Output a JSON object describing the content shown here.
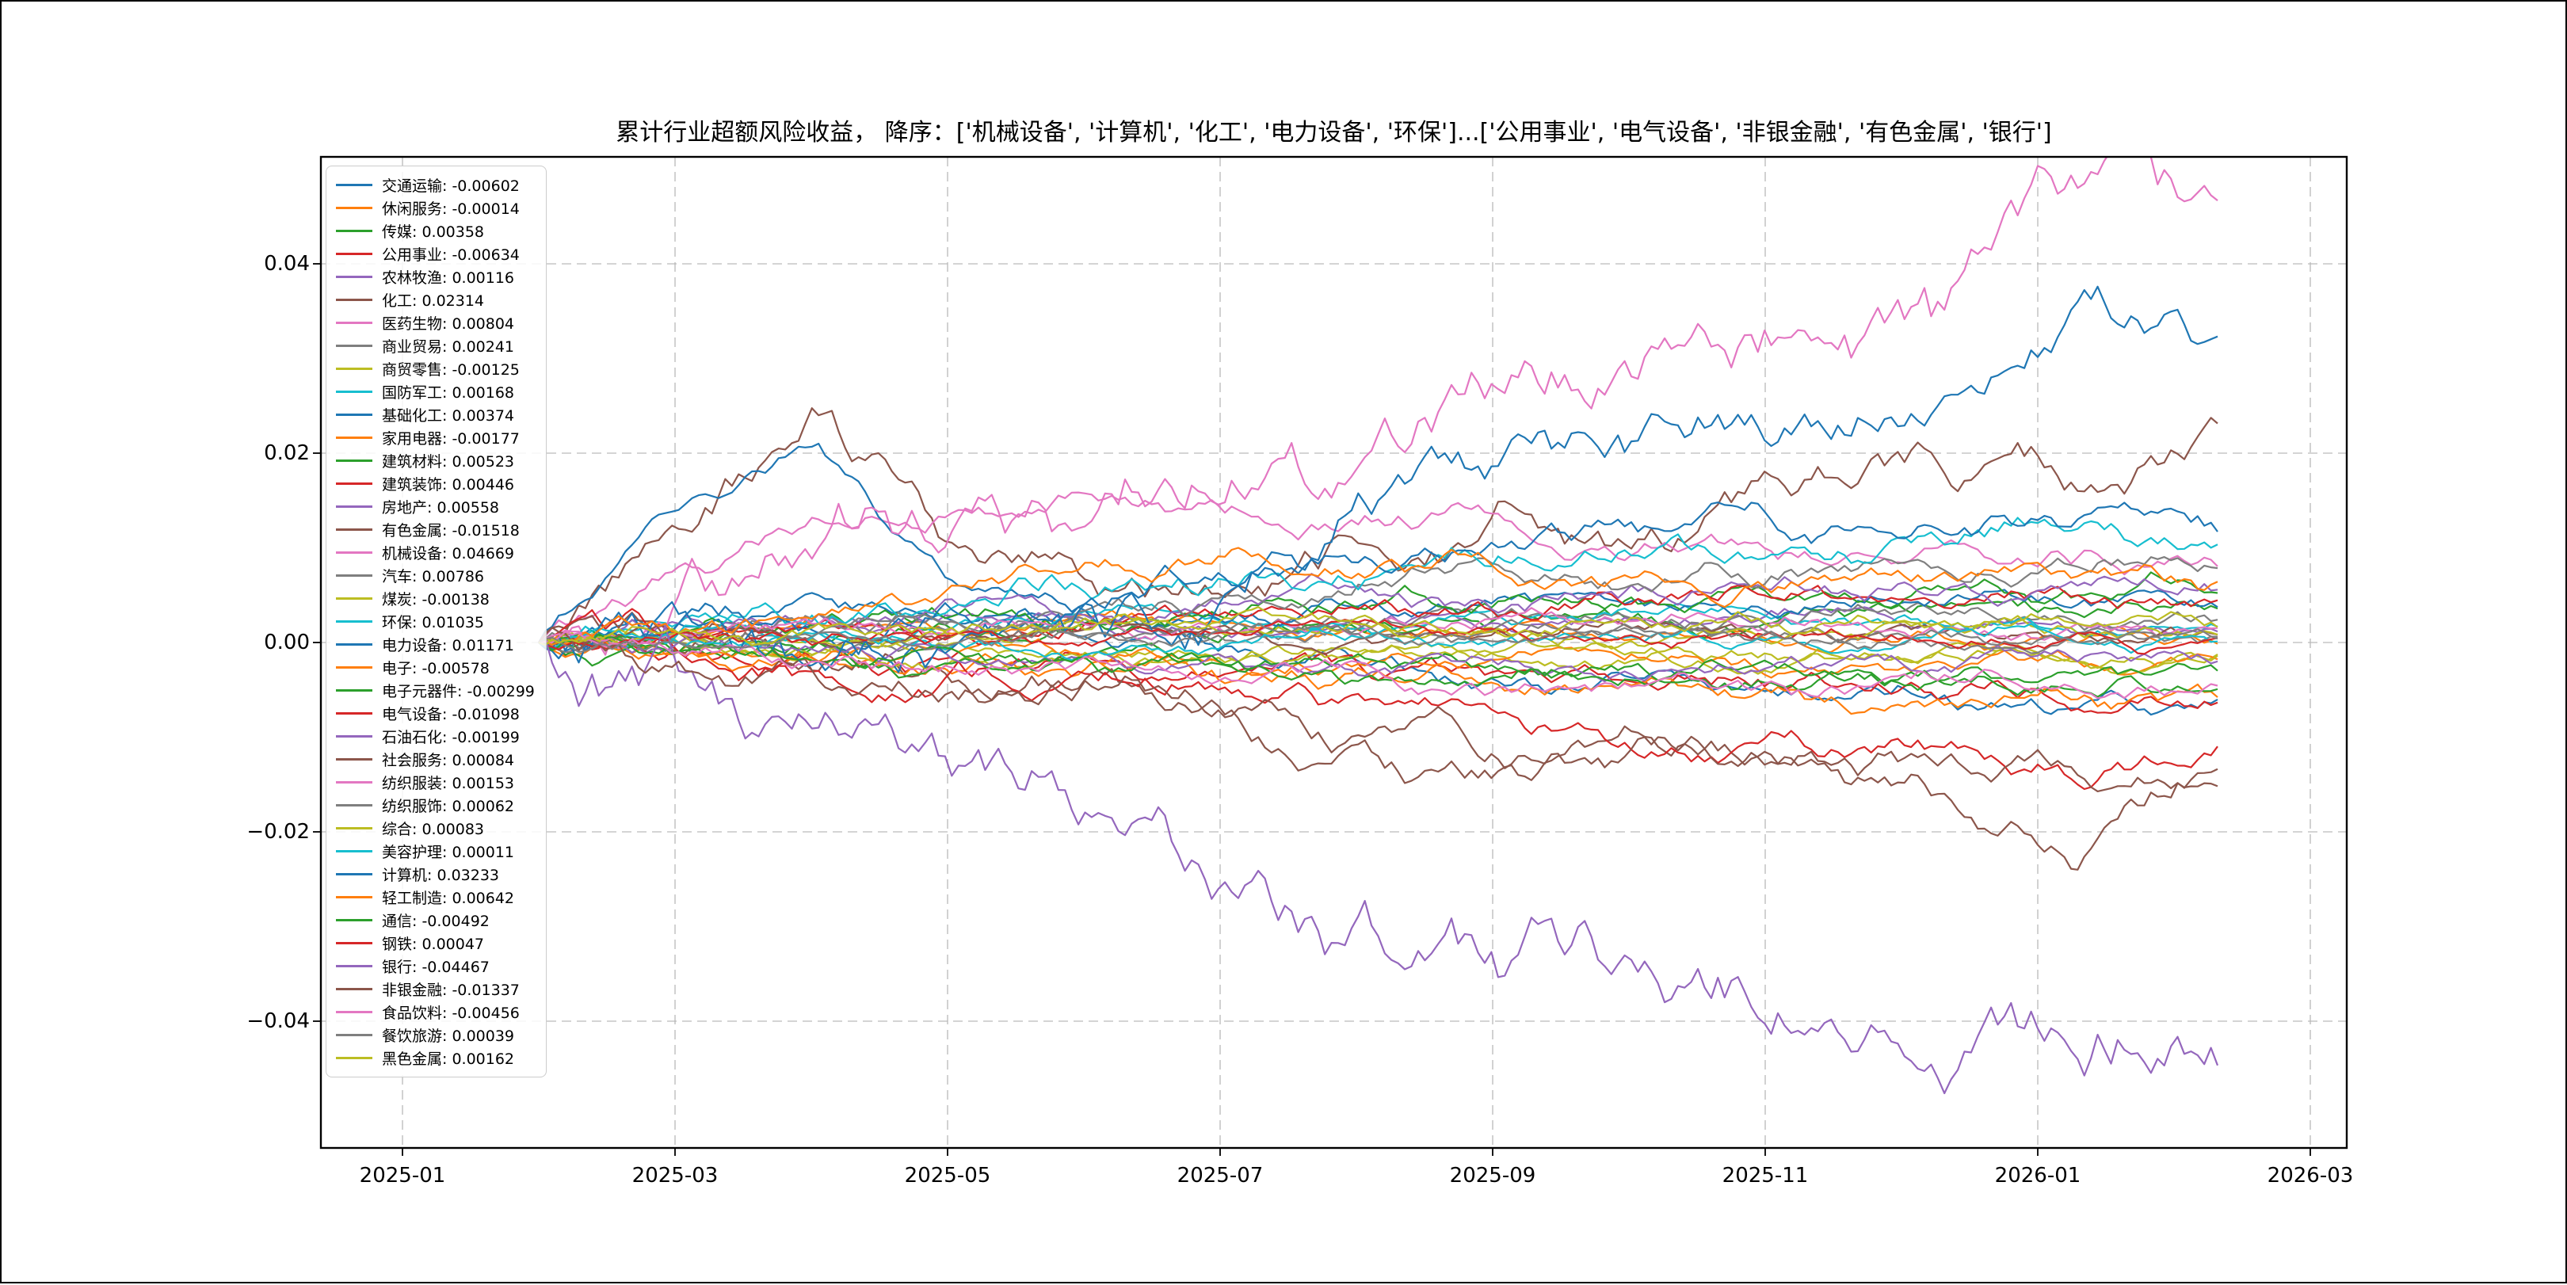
{
  "figure": {
    "background": "#ffffff",
    "border_color": "#000000"
  },
  "chart_data": {
    "type": "line",
    "title": "累计行业超额风险收益， 降序：['机械设备', '计算机', '化工', '电力设备', '环保']...['公用事业', '电气设备', '非银金融', '有色金属', '银行']",
    "xlabel": "",
    "ylabel": "",
    "grid": "dashed",
    "legend_position": "upper left",
    "x_ticks": [
      "2025-01",
      "2025-03",
      "2025-05",
      "2025-07",
      "2025-09",
      "2025-11",
      "2026-01",
      "2026-03"
    ],
    "y_ticks": [
      0.04,
      0.02,
      0.0,
      -0.02,
      -0.04
    ],
    "y_tick_labels": [
      "0.04",
      "0.02",
      "0.00",
      "−0.02",
      "−0.04"
    ],
    "ylim": [
      -0.053,
      0.051
    ],
    "data_start": "2025-02",
    "data_end": "2026-02",
    "series": [
      {
        "name": "交通运输",
        "value_label": "-0.00602",
        "value": -0.00602,
        "color": "#1f77b4",
        "waypoints": [
          0,
          0.002,
          0.005,
          0.002,
          0.0,
          -0.001,
          -0.002,
          -0.004,
          -0.003,
          -0.005,
          -0.006,
          -0.007,
          -0.00602
        ]
      },
      {
        "name": "休闲服务",
        "value_label": "-0.00014",
        "value": -0.00014,
        "color": "#ff7f0e",
        "waypoints": [
          0,
          0.001,
          0.002,
          0.001,
          0.003,
          0.002,
          0.001,
          0.002,
          0.001,
          0.0,
          0.001,
          0.0,
          -0.00014
        ]
      },
      {
        "name": "传媒",
        "value_label": "0.00358",
        "value": 0.00358,
        "color": "#2ca02c",
        "waypoints": [
          0,
          -0.001,
          0.0,
          0.001,
          0.002,
          0.001,
          0.002,
          0.003,
          0.002,
          0.003,
          0.004,
          0.003,
          0.00358
        ]
      },
      {
        "name": "公用事业",
        "value_label": "-0.00634",
        "value": -0.00634,
        "color": "#d62728",
        "waypoints": [
          0,
          -0.001,
          -0.002,
          -0.001,
          -0.002,
          -0.003,
          -0.004,
          -0.003,
          -0.005,
          -0.004,
          -0.006,
          -0.007,
          -0.00634
        ]
      },
      {
        "name": "农林牧渔",
        "value_label": "0.00116",
        "value": 0.00116,
        "color": "#9467bd",
        "waypoints": [
          0,
          0.001,
          0.002,
          0.003,
          0.002,
          0.001,
          0.002,
          0.001,
          0.002,
          0.003,
          0.002,
          0.001,
          0.00116
        ]
      },
      {
        "name": "化工",
        "value_label": "0.02314",
        "value": 0.02314,
        "color": "#8c564b",
        "waypoints": [
          0,
          0.012,
          0.024,
          0.01,
          0.005,
          0.006,
          0.01,
          0.014,
          0.011,
          0.016,
          0.019,
          0.016,
          0.02314
        ]
      },
      {
        "name": "医药生物",
        "value_label": "0.00804",
        "value": 0.00804,
        "color": "#e377c2",
        "waypoints": [
          0,
          0.008,
          0.013,
          0.014,
          0.015,
          0.014,
          0.013,
          0.012,
          0.01,
          0.009,
          0.01,
          0.009,
          0.00804
        ]
      },
      {
        "name": "商业贸易",
        "value_label": "0.00241",
        "value": 0.00241,
        "color": "#7f7f7f",
        "waypoints": [
          0,
          0.001,
          0.0,
          0.001,
          0.002,
          0.001,
          0.002,
          0.003,
          0.002,
          0.002,
          0.003,
          0.002,
          0.00241
        ]
      },
      {
        "name": "商贸零售",
        "value_label": "-0.00125",
        "value": -0.00125,
        "color": "#bcbd22",
        "waypoints": [
          0,
          0.0,
          -0.001,
          0.0,
          -0.001,
          -0.002,
          -0.001,
          -0.002,
          -0.001,
          -0.002,
          -0.001,
          -0.002,
          -0.00125
        ]
      },
      {
        "name": "国防军工",
        "value_label": "0.00168",
        "value": 0.00168,
        "color": "#17becf",
        "waypoints": [
          0,
          0.002,
          0.001,
          0.002,
          0.003,
          0.002,
          0.001,
          0.002,
          0.003,
          0.002,
          0.002,
          0.001,
          0.00168
        ]
      },
      {
        "name": "基础化工",
        "value_label": "0.00374",
        "value": 0.00374,
        "color": "#1f77b4",
        "waypoints": [
          0,
          0.014,
          0.021,
          0.006,
          0.002,
          0.003,
          0.004,
          0.005,
          0.004,
          0.003,
          0.004,
          0.004,
          0.00374
        ]
      },
      {
        "name": "家用电器",
        "value_label": "-0.00177",
        "value": -0.00177,
        "color": "#ff7f0e",
        "waypoints": [
          0,
          -0.001,
          -0.002,
          -0.001,
          -0.002,
          -0.003,
          -0.002,
          -0.001,
          -0.002,
          -0.003,
          -0.002,
          -0.002,
          -0.00177
        ]
      },
      {
        "name": "建筑材料",
        "value_label": "0.00523",
        "value": 0.00523,
        "color": "#2ca02c",
        "waypoints": [
          0,
          0.001,
          0.002,
          0.003,
          0.002,
          0.003,
          0.004,
          0.005,
          0.004,
          0.005,
          0.006,
          0.005,
          0.00523
        ]
      },
      {
        "name": "建筑装饰",
        "value_label": "0.00446",
        "value": 0.00446,
        "color": "#d62728",
        "waypoints": [
          0,
          0.001,
          0.002,
          0.001,
          0.002,
          0.003,
          0.004,
          0.003,
          0.004,
          0.005,
          0.004,
          0.005,
          0.00446
        ]
      },
      {
        "name": "房地产",
        "value_label": "0.00558",
        "value": 0.00558,
        "color": "#9467bd",
        "waypoints": [
          0,
          0.002,
          0.003,
          0.004,
          0.003,
          0.004,
          0.005,
          0.004,
          0.005,
          0.006,
          0.005,
          0.006,
          0.00558
        ]
      },
      {
        "name": "有色金属",
        "value_label": "-0.01518",
        "value": -0.01518,
        "color": "#8c564b",
        "waypoints": [
          0,
          -0.001,
          -0.003,
          -0.004,
          -0.003,
          -0.008,
          -0.012,
          -0.014,
          -0.011,
          -0.013,
          -0.016,
          -0.024,
          -0.01518
        ]
      },
      {
        "name": "机械设备",
        "value_label": "0.04669",
        "value": 0.04669,
        "color": "#e377c2",
        "waypoints": [
          0,
          0.005,
          0.01,
          0.013,
          0.014,
          0.016,
          0.022,
          0.028,
          0.031,
          0.033,
          0.036,
          0.048,
          0.04669
        ]
      },
      {
        "name": "汽车",
        "value_label": "0.00786",
        "value": 0.00786,
        "color": "#7f7f7f",
        "waypoints": [
          0,
          0.001,
          0.003,
          0.002,
          0.004,
          0.005,
          0.006,
          0.007,
          0.006,
          0.007,
          0.008,
          0.008,
          0.00786
        ]
      },
      {
        "name": "煤炭",
        "value_label": "-0.00138",
        "value": -0.00138,
        "color": "#bcbd22",
        "waypoints": [
          0,
          0.0,
          -0.001,
          -0.002,
          -0.001,
          -0.002,
          -0.001,
          0.0,
          -0.001,
          -0.002,
          -0.001,
          -0.002,
          -0.00138
        ]
      },
      {
        "name": "环保",
        "value_label": "0.01035",
        "value": 0.01035,
        "color": "#17becf",
        "waypoints": [
          0,
          0.001,
          0.002,
          0.004,
          0.005,
          0.006,
          0.007,
          0.009,
          0.01,
          0.01,
          0.011,
          0.012,
          0.01035
        ]
      },
      {
        "name": "电力设备",
        "value_label": "0.01171",
        "value": 0.01171,
        "color": "#1f77b4",
        "waypoints": [
          0,
          0.002,
          0.001,
          0.003,
          0.004,
          0.006,
          0.008,
          0.01,
          0.012,
          0.011,
          0.012,
          0.013,
          0.01171
        ]
      },
      {
        "name": "电子",
        "value_label": "-0.00578",
        "value": -0.00578,
        "color": "#ff7f0e",
        "waypoints": [
          0,
          -0.001,
          -0.002,
          -0.003,
          -0.002,
          -0.004,
          -0.003,
          -0.005,
          -0.004,
          -0.005,
          -0.006,
          -0.006,
          -0.00578
        ]
      },
      {
        "name": "电子元器件",
        "value_label": "-0.00299",
        "value": -0.00299,
        "color": "#2ca02c",
        "waypoints": [
          0,
          -0.001,
          0.0,
          -0.002,
          -0.001,
          -0.003,
          -0.002,
          -0.003,
          -0.004,
          -0.003,
          -0.004,
          -0.003,
          -0.00299
        ]
      },
      {
        "name": "电气设备",
        "value_label": "-0.01098",
        "value": -0.01098,
        "color": "#d62728",
        "waypoints": [
          0,
          -0.001,
          -0.003,
          -0.002,
          -0.004,
          -0.005,
          -0.006,
          -0.008,
          -0.012,
          -0.01,
          -0.011,
          -0.015,
          -0.01098
        ]
      },
      {
        "name": "石油石化",
        "value_label": "-0.00199",
        "value": -0.00199,
        "color": "#9467bd",
        "waypoints": [
          0,
          0.0,
          -0.001,
          -0.002,
          -0.001,
          -0.002,
          -0.003,
          -0.002,
          -0.003,
          -0.002,
          -0.003,
          -0.002,
          -0.00199
        ]
      },
      {
        "name": "社会服务",
        "value_label": "0.00084",
        "value": 0.00084,
        "color": "#8c564b",
        "waypoints": [
          0,
          0.001,
          0.0,
          0.001,
          0.002,
          0.001,
          0.0,
          0.001,
          0.002,
          0.001,
          0.001,
          0.001,
          0.00084
        ]
      },
      {
        "name": "纺织服装",
        "value_label": "0.00153",
        "value": 0.00153,
        "color": "#e377c2",
        "waypoints": [
          0,
          0.001,
          0.002,
          0.001,
          0.002,
          0.001,
          0.002,
          0.003,
          0.002,
          0.002,
          0.001,
          0.002,
          0.00153
        ]
      },
      {
        "name": "纺织服饰",
        "value_label": "0.00062",
        "value": 0.00062,
        "color": "#7f7f7f",
        "waypoints": [
          0,
          0.0,
          0.001,
          0.002,
          0.001,
          0.0,
          0.001,
          0.002,
          0.001,
          0.001,
          0.0,
          0.001,
          0.00062
        ]
      },
      {
        "name": "综合",
        "value_label": "0.00083",
        "value": 0.00083,
        "color": "#bcbd22",
        "waypoints": [
          0,
          0.001,
          0.0,
          0.001,
          0.002,
          0.001,
          0.002,
          0.001,
          0.0,
          0.001,
          0.002,
          0.001,
          0.00083
        ]
      },
      {
        "name": "美容护理",
        "value_label": "0.00011",
        "value": 0.00011,
        "color": "#17becf",
        "waypoints": [
          0,
          0.0,
          0.001,
          0.0,
          -0.001,
          0.0,
          0.001,
          0.0,
          0.001,
          0.0,
          0.001,
          0.0,
          0.00011
        ]
      },
      {
        "name": "计算机",
        "value_label": "0.03233",
        "value": 0.03233,
        "color": "#1f77b4",
        "waypoints": [
          0,
          0.003,
          -0.002,
          0.0,
          0.002,
          0.006,
          0.015,
          0.022,
          0.024,
          0.023,
          0.025,
          0.036,
          0.03233
        ]
      },
      {
        "name": "轻工制造",
        "value_label": "0.00642",
        "value": 0.00642,
        "color": "#ff7f0e",
        "waypoints": [
          0,
          0.001,
          0.003,
          0.006,
          0.008,
          0.01,
          0.008,
          0.006,
          0.007,
          0.006,
          0.007,
          0.007,
          0.00642
        ]
      },
      {
        "name": "通信",
        "value_label": "-0.00492",
        "value": -0.00492,
        "color": "#2ca02c",
        "waypoints": [
          0,
          -0.001,
          -0.002,
          -0.001,
          -0.003,
          -0.002,
          -0.004,
          -0.003,
          -0.004,
          -0.005,
          -0.004,
          -0.005,
          -0.00492
        ]
      },
      {
        "name": "钢铁",
        "value_label": "0.00047",
        "value": 0.00047,
        "color": "#d62728",
        "waypoints": [
          0,
          0.001,
          0.0,
          0.001,
          0.0,
          0.001,
          0.002,
          0.001,
          0.0,
          0.001,
          0.0,
          0.001,
          0.00047
        ]
      },
      {
        "name": "银行",
        "value_label": "-0.04467",
        "value": -0.04467,
        "color": "#9467bd",
        "waypoints": [
          0,
          -0.003,
          -0.009,
          -0.013,
          -0.018,
          -0.027,
          -0.031,
          -0.033,
          -0.036,
          -0.041,
          -0.046,
          -0.044,
          -0.04467
        ]
      },
      {
        "name": "非银金融",
        "value_label": "-0.01337",
        "value": -0.01337,
        "color": "#8c564b",
        "waypoints": [
          0,
          -0.002,
          -0.004,
          -0.006,
          -0.005,
          -0.007,
          -0.009,
          -0.012,
          -0.01,
          -0.012,
          -0.013,
          -0.014,
          -0.01337
        ]
      },
      {
        "name": "食品饮料",
        "value_label": "-0.00456",
        "value": -0.00456,
        "color": "#e377c2",
        "waypoints": [
          0,
          -0.001,
          -0.002,
          -0.003,
          -0.002,
          -0.004,
          -0.003,
          -0.005,
          -0.004,
          -0.005,
          -0.004,
          -0.005,
          -0.00456
        ]
      },
      {
        "name": "餐饮旅游",
        "value_label": "0.00039",
        "value": 0.00039,
        "color": "#7f7f7f",
        "waypoints": [
          0,
          0.0,
          0.001,
          0.0,
          0.001,
          0.002,
          0.001,
          0.0,
          0.001,
          0.0,
          0.001,
          0.0,
          0.00039
        ]
      },
      {
        "name": "黑色金属",
        "value_label": "0.00162",
        "value": 0.00162,
        "color": "#bcbd22",
        "waypoints": [
          0,
          0.001,
          0.002,
          0.001,
          0.002,
          0.003,
          0.002,
          0.001,
          0.002,
          0.001,
          0.002,
          0.002,
          0.00162
        ]
      }
    ]
  }
}
